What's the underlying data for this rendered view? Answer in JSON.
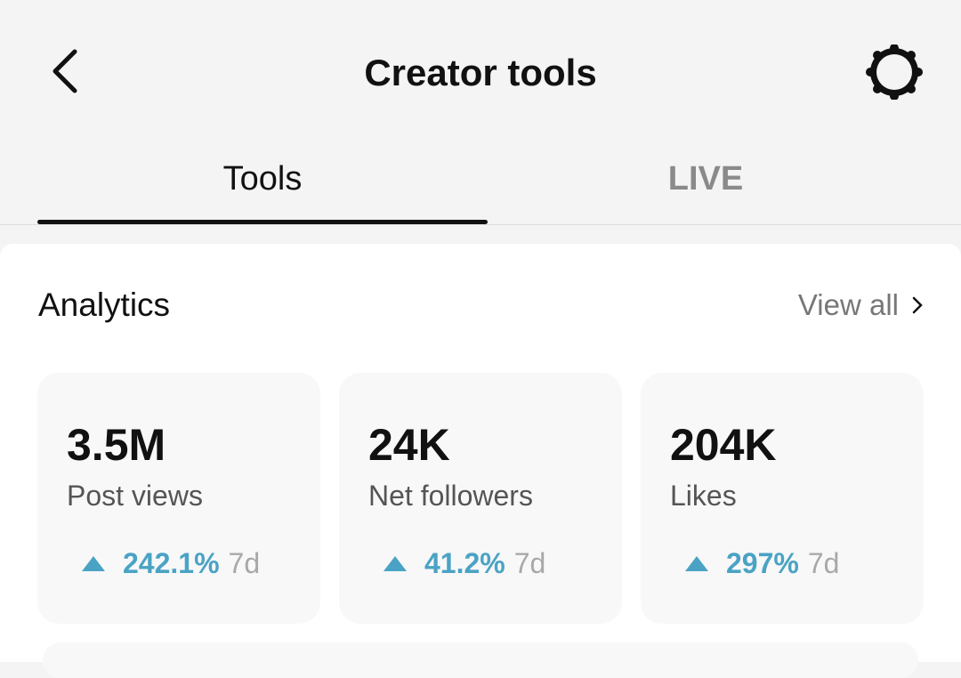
{
  "header": {
    "title": "Creator tools",
    "back_icon": "chevron-left-icon",
    "settings_icon": "gear-icon"
  },
  "tabs": [
    {
      "label": "Tools",
      "active": true
    },
    {
      "label": "LIVE",
      "active": false
    }
  ],
  "analytics": {
    "title": "Analytics",
    "view_all": "View all",
    "cards": [
      {
        "value": "3.5M",
        "label": "Post views",
        "change": "242.1%",
        "period": "7d"
      },
      {
        "value": "24K",
        "label": "Net followers",
        "change": "41.2%",
        "period": "7d"
      },
      {
        "value": "204K",
        "label": "Likes",
        "change": "297%",
        "period": "7d"
      }
    ]
  },
  "colors": {
    "accent": "#4aa3c4"
  }
}
